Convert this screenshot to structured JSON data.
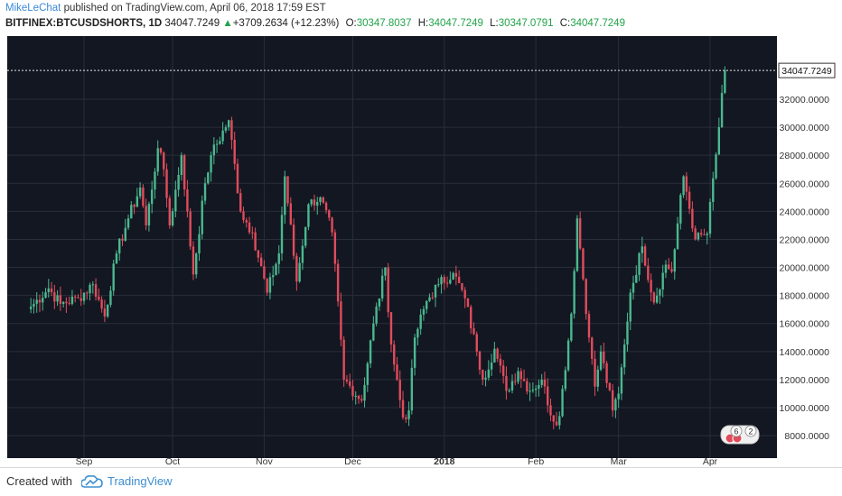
{
  "header": {
    "author": "MikeLeChat",
    "published_text": "published on TradingView.com, April 06, 2018 17:59 EST",
    "symbol": "BITFINEX:BTCUSDSHORTS, 1D",
    "last": "34047.7249",
    "change": "+3709.2634 (+12.23%)",
    "change_arrow": "▲",
    "o_label": "O:",
    "o_value": "30347.8037",
    "h_label": "H:",
    "h_value": "34047.7249",
    "l_label": "L:",
    "l_value": "30347.0791",
    "c_label": "C:",
    "c_value": "34047.7249"
  },
  "footer": {
    "created_with": "Created with",
    "brand": "TradingView"
  },
  "colors": {
    "background": "#131722",
    "up": "#4bb88f",
    "down": "#e04c5c",
    "grid": "#2a2e39",
    "text": "#333333"
  },
  "chart_data": {
    "type": "candlestick",
    "x_tick_labels": [
      "Sep",
      "Oct",
      "Nov",
      "Dec",
      "2018",
      "Feb",
      "Mar",
      "Apr"
    ],
    "y_tick_labels": [
      "8000.0000",
      "10000.0000",
      "12000.0000",
      "14000.0000",
      "16000.0000",
      "18000.0000",
      "20000.0000",
      "22000.0000",
      "24000.0000",
      "26000.0000",
      "28000.0000",
      "30000.0000",
      "32000.0000"
    ],
    "ylim": [
      6400,
      36500
    ],
    "last_price_label": "34047.7249",
    "last_price": 34047.7249,
    "event_badges": [
      "6",
      "2"
    ],
    "anchors": [
      [
        "2017-08-14",
        17200
      ],
      [
        "2017-08-20",
        18500
      ],
      [
        "2017-08-24",
        17400
      ],
      [
        "2017-08-30",
        17800
      ],
      [
        "2017-09-04",
        18800
      ],
      [
        "2017-09-08",
        16500
      ],
      [
        "2017-09-12",
        21000
      ],
      [
        "2017-09-16",
        23500
      ],
      [
        "2017-09-20",
        25700
      ],
      [
        "2017-09-22",
        23000
      ],
      [
        "2017-09-26",
        28500
      ],
      [
        "2017-09-28",
        27000
      ],
      [
        "2017-09-30",
        23000
      ],
      [
        "2017-10-04",
        28000
      ],
      [
        "2017-10-08",
        19500
      ],
      [
        "2017-10-12",
        26000
      ],
      [
        "2017-10-14",
        28000
      ],
      [
        "2017-10-20",
        30500
      ],
      [
        "2017-10-24",
        24000
      ],
      [
        "2017-10-28",
        22500
      ],
      [
        "2017-11-02",
        18200
      ],
      [
        "2017-11-06",
        21000
      ],
      [
        "2017-11-08",
        26500
      ],
      [
        "2017-11-12",
        19000
      ],
      [
        "2017-11-16",
        24500
      ],
      [
        "2017-11-20",
        25000
      ],
      [
        "2017-11-24",
        22500
      ],
      [
        "2017-11-28",
        12000
      ],
      [
        "2017-12-04",
        10500
      ],
      [
        "2017-12-08",
        16000
      ],
      [
        "2017-12-12",
        20000
      ],
      [
        "2017-12-14",
        14500
      ],
      [
        "2017-12-18",
        9300
      ],
      [
        "2017-12-20",
        9800
      ],
      [
        "2017-12-22",
        15000
      ],
      [
        "2017-12-26",
        17600
      ],
      [
        "2017-12-30",
        18800
      ],
      [
        "2018-01-04",
        19600
      ],
      [
        "2018-01-08",
        17800
      ],
      [
        "2018-01-12",
        14000
      ],
      [
        "2018-01-14",
        12000
      ],
      [
        "2018-01-18",
        14200
      ],
      [
        "2018-01-22",
        11200
      ],
      [
        "2018-01-26",
        12600
      ],
      [
        "2018-01-30",
        11200
      ],
      [
        "2018-02-03",
        12000
      ],
      [
        "2018-02-07",
        9000
      ],
      [
        "2018-02-09",
        9400
      ],
      [
        "2018-02-13",
        16700
      ],
      [
        "2018-02-15",
        23500
      ],
      [
        "2018-02-19",
        15000
      ],
      [
        "2018-02-21",
        11500
      ],
      [
        "2018-02-23",
        14000
      ],
      [
        "2018-02-27",
        9800
      ],
      [
        "2018-03-01",
        11000
      ],
      [
        "2018-03-03",
        14500
      ],
      [
        "2018-03-05",
        18200
      ],
      [
        "2018-03-09",
        21500
      ],
      [
        "2018-03-13",
        17500
      ],
      [
        "2018-03-17",
        20200
      ],
      [
        "2018-03-19",
        19700
      ],
      [
        "2018-03-23",
        26500
      ],
      [
        "2018-03-27",
        22000
      ],
      [
        "2018-03-31",
        22400
      ],
      [
        "2018-04-04",
        30000
      ],
      [
        "2018-04-06",
        34047.7249
      ]
    ]
  }
}
